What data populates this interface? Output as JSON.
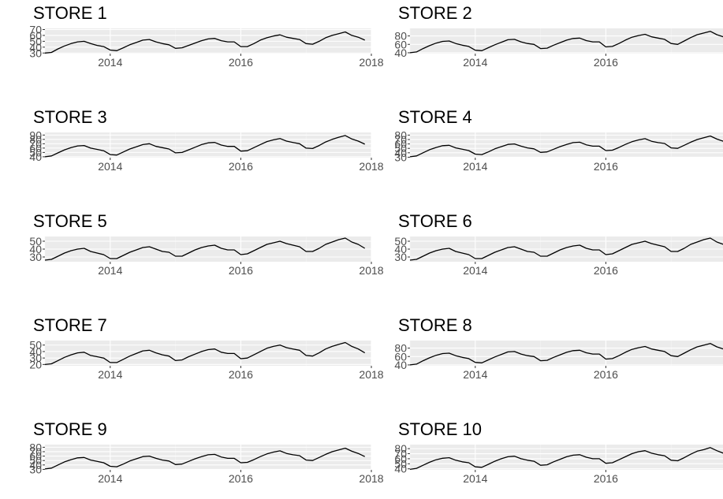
{
  "chart_data": [
    {
      "type": "line",
      "title": "STORE 1",
      "xlabel": "",
      "ylabel": "",
      "xlim": [
        2013.0,
        2018.0
      ],
      "xticks": [
        2014,
        2016,
        2018
      ],
      "yticks": [
        30,
        40,
        50,
        60,
        70
      ],
      "ylim": [
        29,
        72
      ],
      "grid": true,
      "x": [
        2013.0,
        2013.1,
        2013.2,
        2013.3,
        2013.4,
        2013.5,
        2013.6,
        2013.7,
        2013.8,
        2013.9,
        2014.0,
        2014.1,
        2014.2,
        2014.3,
        2014.4,
        2014.5,
        2014.6,
        2014.7,
        2014.8,
        2014.9,
        2015.0,
        2015.1,
        2015.2,
        2015.3,
        2015.4,
        2015.5,
        2015.6,
        2015.7,
        2015.8,
        2015.9,
        2016.0,
        2016.1,
        2016.2,
        2016.3,
        2016.4,
        2016.5,
        2016.6,
        2016.7,
        2016.8,
        2016.9,
        2017.0,
        2017.1,
        2017.2,
        2017.3,
        2017.4,
        2017.5,
        2017.6,
        2017.7,
        2017.8,
        2017.9
      ],
      "values": [
        30,
        31,
        37,
        42,
        46,
        49,
        50,
        46,
        43,
        41,
        35,
        34,
        39,
        44,
        48,
        52,
        53,
        49,
        46,
        44,
        38,
        39,
        43,
        47,
        51,
        54,
        55,
        51,
        49,
        49,
        41,
        41,
        46,
        52,
        56,
        59,
        61,
        57,
        55,
        53,
        46,
        45,
        50,
        56,
        60,
        63,
        66,
        60,
        57,
        52
      ]
    },
    {
      "type": "line",
      "title": "STORE 2",
      "xlabel": "",
      "ylabel": "",
      "xlim": [
        2013.0,
        2018.0
      ],
      "xticks": [
        2014,
        2016,
        2018
      ],
      "yticks": [
        40,
        60,
        80
      ],
      "ylim": [
        38,
        98
      ],
      "grid": true,
      "x": [
        2013.0,
        2013.1,
        2013.2,
        2013.3,
        2013.4,
        2013.5,
        2013.6,
        2013.7,
        2013.8,
        2013.9,
        2014.0,
        2014.1,
        2014.2,
        2014.3,
        2014.4,
        2014.5,
        2014.6,
        2014.7,
        2014.8,
        2014.9,
        2015.0,
        2015.1,
        2015.2,
        2015.3,
        2015.4,
        2015.5,
        2015.6,
        2015.7,
        2015.8,
        2015.9,
        2016.0,
        2016.1,
        2016.2,
        2016.3,
        2016.4,
        2016.5,
        2016.6,
        2016.7,
        2016.8,
        2016.9,
        2017.0,
        2017.1,
        2017.2,
        2017.3,
        2017.4,
        2017.5,
        2017.6,
        2017.7,
        2017.8,
        2017.9
      ],
      "values": [
        40,
        42,
        50,
        57,
        63,
        67,
        68,
        62,
        58,
        55,
        46,
        45,
        52,
        59,
        65,
        71,
        72,
        66,
        62,
        60,
        50,
        51,
        58,
        64,
        70,
        74,
        75,
        69,
        66,
        66,
        54,
        55,
        62,
        70,
        77,
        81,
        84,
        78,
        75,
        72,
        62,
        60,
        68,
        76,
        83,
        87,
        91,
        83,
        78,
        70
      ]
    },
    {
      "type": "line",
      "title": "STORE 3",
      "xlabel": "",
      "ylabel": "",
      "xlim": [
        2013.0,
        2018.0
      ],
      "xticks": [
        2014,
        2016,
        2018
      ],
      "yticks": [
        40,
        50,
        60,
        70,
        80,
        90
      ],
      "ylim": [
        38,
        96
      ],
      "grid": true,
      "x": [
        2013.0,
        2013.1,
        2013.2,
        2013.3,
        2013.4,
        2013.5,
        2013.6,
        2013.7,
        2013.8,
        2013.9,
        2014.0,
        2014.1,
        2014.2,
        2014.3,
        2014.4,
        2014.5,
        2014.6,
        2014.7,
        2014.8,
        2014.9,
        2015.0,
        2015.1,
        2015.2,
        2015.3,
        2015.4,
        2015.5,
        2015.6,
        2015.7,
        2015.8,
        2015.9,
        2016.0,
        2016.1,
        2016.2,
        2016.3,
        2016.4,
        2016.5,
        2016.6,
        2016.7,
        2016.8,
        2016.9,
        2017.0,
        2017.1,
        2017.2,
        2017.3,
        2017.4,
        2017.5,
        2017.6,
        2017.7,
        2017.8,
        2017.9
      ],
      "values": [
        40,
        42,
        49,
        56,
        61,
        65,
        66,
        60,
        57,
        54,
        45,
        44,
        51,
        58,
        63,
        68,
        70,
        64,
        61,
        58,
        49,
        50,
        56,
        62,
        68,
        72,
        73,
        67,
        64,
        64,
        53,
        54,
        61,
        68,
        75,
        79,
        82,
        76,
        73,
        70,
        60,
        59,
        66,
        74,
        80,
        85,
        89,
        81,
        76,
        69
      ]
    },
    {
      "type": "line",
      "title": "STORE 4",
      "xlabel": "",
      "ylabel": "",
      "xlim": [
        2013.0,
        2018.0
      ],
      "xticks": [
        2014,
        2016,
        2018
      ],
      "yticks": [
        30,
        40,
        50,
        60,
        70,
        80
      ],
      "ylim": [
        29,
        86
      ],
      "grid": true,
      "x": [
        2013.0,
        2013.1,
        2013.2,
        2013.3,
        2013.4,
        2013.5,
        2013.6,
        2013.7,
        2013.8,
        2013.9,
        2014.0,
        2014.1,
        2014.2,
        2014.3,
        2014.4,
        2014.5,
        2014.6,
        2014.7,
        2014.8,
        2014.9,
        2015.0,
        2015.1,
        2015.2,
        2015.3,
        2015.4,
        2015.5,
        2015.6,
        2015.7,
        2015.8,
        2015.9,
        2016.0,
        2016.1,
        2016.2,
        2016.3,
        2016.4,
        2016.5,
        2016.6,
        2016.7,
        2016.8,
        2016.9,
        2017.0,
        2017.1,
        2017.2,
        2017.3,
        2017.4,
        2017.5,
        2017.6,
        2017.7,
        2017.8,
        2017.9
      ],
      "values": [
        31,
        33,
        40,
        47,
        52,
        56,
        57,
        51,
        48,
        45,
        37,
        36,
        42,
        49,
        54,
        59,
        60,
        55,
        51,
        49,
        41,
        42,
        48,
        54,
        59,
        63,
        64,
        58,
        55,
        55,
        45,
        46,
        52,
        59,
        65,
        69,
        72,
        66,
        63,
        61,
        51,
        50,
        57,
        64,
        70,
        74,
        78,
        71,
        66,
        59
      ]
    },
    {
      "type": "line",
      "title": "STORE 5",
      "xlabel": "",
      "ylabel": "",
      "xlim": [
        2013.0,
        2018.0
      ],
      "xticks": [
        2014,
        2016,
        2018
      ],
      "yticks": [
        30,
        40,
        50
      ],
      "ylim": [
        24,
        56
      ],
      "grid": true,
      "x": [
        2013.0,
        2013.1,
        2013.2,
        2013.3,
        2013.4,
        2013.5,
        2013.6,
        2013.7,
        2013.8,
        2013.9,
        2014.0,
        2014.1,
        2014.2,
        2014.3,
        2014.4,
        2014.5,
        2014.6,
        2014.7,
        2014.8,
        2014.9,
        2015.0,
        2015.1,
        2015.2,
        2015.3,
        2015.4,
        2015.5,
        2015.6,
        2015.7,
        2015.8,
        2015.9,
        2016.0,
        2016.1,
        2016.2,
        2016.3,
        2016.4,
        2016.5,
        2016.6,
        2016.7,
        2016.8,
        2016.9,
        2017.0,
        2017.1,
        2017.2,
        2017.3,
        2017.4,
        2017.5,
        2017.6,
        2017.7,
        2017.8,
        2017.9
      ],
      "values": [
        26,
        27,
        31,
        35,
        38,
        40,
        41,
        37,
        35,
        33,
        28,
        28,
        32,
        36,
        39,
        42,
        43,
        40,
        37,
        36,
        31,
        31,
        35,
        39,
        42,
        44,
        45,
        41,
        39,
        39,
        33,
        34,
        38,
        42,
        46,
        48,
        50,
        47,
        45,
        43,
        37,
        37,
        41,
        46,
        49,
        52,
        54,
        49,
        46,
        41
      ]
    },
    {
      "type": "line",
      "title": "STORE 6",
      "xlabel": "",
      "ylabel": "",
      "xlim": [
        2013.0,
        2018.0
      ],
      "xticks": [
        2014,
        2016,
        2018
      ],
      "yticks": [
        30,
        40,
        50
      ],
      "ylim": [
        24,
        56
      ],
      "grid": true,
      "x": [
        2013.0,
        2013.1,
        2013.2,
        2013.3,
        2013.4,
        2013.5,
        2013.6,
        2013.7,
        2013.8,
        2013.9,
        2014.0,
        2014.1,
        2014.2,
        2014.3,
        2014.4,
        2014.5,
        2014.6,
        2014.7,
        2014.8,
        2014.9,
        2015.0,
        2015.1,
        2015.2,
        2015.3,
        2015.4,
        2015.5,
        2015.6,
        2015.7,
        2015.8,
        2015.9,
        2016.0,
        2016.1,
        2016.2,
        2016.3,
        2016.4,
        2016.5,
        2016.6,
        2016.7,
        2016.8,
        2016.9,
        2017.0,
        2017.1,
        2017.2,
        2017.3,
        2017.4,
        2017.5,
        2017.6,
        2017.7,
        2017.8,
        2017.9
      ],
      "values": [
        26,
        27,
        31,
        35,
        38,
        40,
        41,
        37,
        35,
        33,
        28,
        28,
        32,
        36,
        39,
        42,
        43,
        40,
        37,
        36,
        31,
        31,
        35,
        39,
        42,
        44,
        45,
        41,
        39,
        39,
        33,
        34,
        38,
        42,
        46,
        48,
        50,
        47,
        45,
        43,
        37,
        37,
        41,
        46,
        49,
        52,
        54,
        49,
        46,
        41
      ]
    },
    {
      "type": "line",
      "title": "STORE 7",
      "xlabel": "",
      "ylabel": "",
      "xlim": [
        2013.0,
        2018.0
      ],
      "xticks": [
        2014,
        2016,
        2018
      ],
      "yticks": [
        20,
        30,
        40,
        50
      ],
      "ylim": [
        18,
        57
      ],
      "grid": true,
      "x": [
        2013.0,
        2013.1,
        2013.2,
        2013.3,
        2013.4,
        2013.5,
        2013.6,
        2013.7,
        2013.8,
        2013.9,
        2014.0,
        2014.1,
        2014.2,
        2014.3,
        2014.4,
        2014.5,
        2014.6,
        2014.7,
        2014.8,
        2014.9,
        2015.0,
        2015.1,
        2015.2,
        2015.3,
        2015.4,
        2015.5,
        2015.6,
        2015.7,
        2015.8,
        2015.9,
        2016.0,
        2016.1,
        2016.2,
        2016.3,
        2016.4,
        2016.5,
        2016.6,
        2016.7,
        2016.8,
        2016.9,
        2017.0,
        2017.1,
        2017.2,
        2017.3,
        2017.4,
        2017.5,
        2017.6,
        2017.7,
        2017.8,
        2017.9
      ],
      "values": [
        20,
        21,
        26,
        31,
        35,
        38,
        39,
        34,
        32,
        30,
        23,
        23,
        28,
        33,
        37,
        41,
        42,
        38,
        35,
        33,
        26,
        27,
        32,
        36,
        40,
        43,
        44,
        39,
        37,
        37,
        29,
        30,
        35,
        40,
        45,
        48,
        50,
        46,
        44,
        42,
        34,
        33,
        38,
        44,
        48,
        51,
        54,
        48,
        44,
        38
      ]
    },
    {
      "type": "line",
      "title": "STORE 8",
      "xlabel": "",
      "ylabel": "",
      "xlim": [
        2013.0,
        2018.0
      ],
      "xticks": [
        2014,
        2016,
        2018
      ],
      "yticks": [
        40,
        60,
        80
      ],
      "ylim": [
        38,
        98
      ],
      "grid": true,
      "x": [
        2013.0,
        2013.1,
        2013.2,
        2013.3,
        2013.4,
        2013.5,
        2013.6,
        2013.7,
        2013.8,
        2013.9,
        2014.0,
        2014.1,
        2014.2,
        2014.3,
        2014.4,
        2014.5,
        2014.6,
        2014.7,
        2014.8,
        2014.9,
        2015.0,
        2015.1,
        2015.2,
        2015.3,
        2015.4,
        2015.5,
        2015.6,
        2015.7,
        2015.8,
        2015.9,
        2016.0,
        2016.1,
        2016.2,
        2016.3,
        2016.4,
        2016.5,
        2016.6,
        2016.7,
        2016.8,
        2016.9,
        2017.0,
        2017.1,
        2017.2,
        2017.3,
        2017.4,
        2017.5,
        2017.6,
        2017.7,
        2017.8,
        2017.9
      ],
      "values": [
        40,
        42,
        50,
        57,
        63,
        67,
        68,
        62,
        58,
        55,
        46,
        45,
        52,
        59,
        65,
        71,
        72,
        66,
        62,
        60,
        50,
        51,
        58,
        64,
        70,
        74,
        75,
        69,
        66,
        66,
        54,
        55,
        62,
        70,
        77,
        81,
        84,
        78,
        75,
        72,
        62,
        60,
        68,
        76,
        83,
        87,
        91,
        83,
        78,
        70
      ]
    },
    {
      "type": "line",
      "title": "STORE 9",
      "xlabel": "",
      "ylabel": "",
      "xlim": [
        2013.0,
        2018.0
      ],
      "xticks": [
        2014,
        2016,
        2018
      ],
      "yticks": [
        30,
        40,
        50,
        60,
        70,
        80
      ],
      "ylim": [
        29,
        86
      ],
      "grid": true,
      "x": [
        2013.0,
        2013.1,
        2013.2,
        2013.3,
        2013.4,
        2013.5,
        2013.6,
        2013.7,
        2013.8,
        2013.9,
        2014.0,
        2014.1,
        2014.2,
        2014.3,
        2014.4,
        2014.5,
        2014.6,
        2014.7,
        2014.8,
        2014.9,
        2015.0,
        2015.1,
        2015.2,
        2015.3,
        2015.4,
        2015.5,
        2015.6,
        2015.7,
        2015.8,
        2015.9,
        2016.0,
        2016.1,
        2016.2,
        2016.3,
        2016.4,
        2016.5,
        2016.6,
        2016.7,
        2016.8,
        2016.9,
        2017.0,
        2017.1,
        2017.2,
        2017.3,
        2017.4,
        2017.5,
        2017.6,
        2017.7,
        2017.8,
        2017.9
      ],
      "values": [
        31,
        33,
        40,
        47,
        52,
        56,
        57,
        51,
        48,
        45,
        37,
        36,
        42,
        49,
        54,
        59,
        60,
        55,
        51,
        49,
        41,
        42,
        48,
        54,
        59,
        63,
        64,
        58,
        55,
        55,
        45,
        46,
        52,
        59,
        65,
        69,
        72,
        66,
        63,
        61,
        51,
        50,
        57,
        64,
        70,
        74,
        78,
        71,
        66,
        59
      ]
    },
    {
      "type": "line",
      "title": "STORE 10",
      "xlabel": "",
      "ylabel": "",
      "xlim": [
        2013.0,
        2018.0
      ],
      "xticks": [
        2014,
        2016,
        2018
      ],
      "yticks": [
        40,
        50,
        60,
        70,
        80
      ],
      "ylim": [
        38,
        88
      ],
      "grid": true,
      "x": [
        2013.0,
        2013.1,
        2013.2,
        2013.3,
        2013.4,
        2013.5,
        2013.6,
        2013.7,
        2013.8,
        2013.9,
        2014.0,
        2014.1,
        2014.2,
        2014.3,
        2014.4,
        2014.5,
        2014.6,
        2014.7,
        2014.8,
        2014.9,
        2015.0,
        2015.1,
        2015.2,
        2015.3,
        2015.4,
        2015.5,
        2015.6,
        2015.7,
        2015.8,
        2015.9,
        2016.0,
        2016.1,
        2016.2,
        2016.3,
        2016.4,
        2016.5,
        2016.6,
        2016.7,
        2016.8,
        2016.9,
        2017.0,
        2017.1,
        2017.2,
        2017.3,
        2017.4,
        2017.5,
        2017.6,
        2017.7,
        2017.8,
        2017.9
      ],
      "values": [
        39,
        41,
        47,
        53,
        58,
        61,
        62,
        57,
        54,
        52,
        44,
        43,
        49,
        55,
        60,
        64,
        65,
        60,
        57,
        55,
        47,
        48,
        54,
        59,
        64,
        67,
        68,
        63,
        60,
        60,
        51,
        52,
        58,
        64,
        70,
        74,
        76,
        71,
        68,
        66,
        57,
        56,
        62,
        69,
        75,
        78,
        82,
        76,
        71,
        64
      ]
    }
  ],
  "colors": {
    "panel_background": "#ebebeb",
    "grid_major": "#ffffff",
    "grid_minor": "#f4f4f4",
    "line": "#000000",
    "tick_text": "#4d4d4d",
    "title_text": "#000000"
  }
}
